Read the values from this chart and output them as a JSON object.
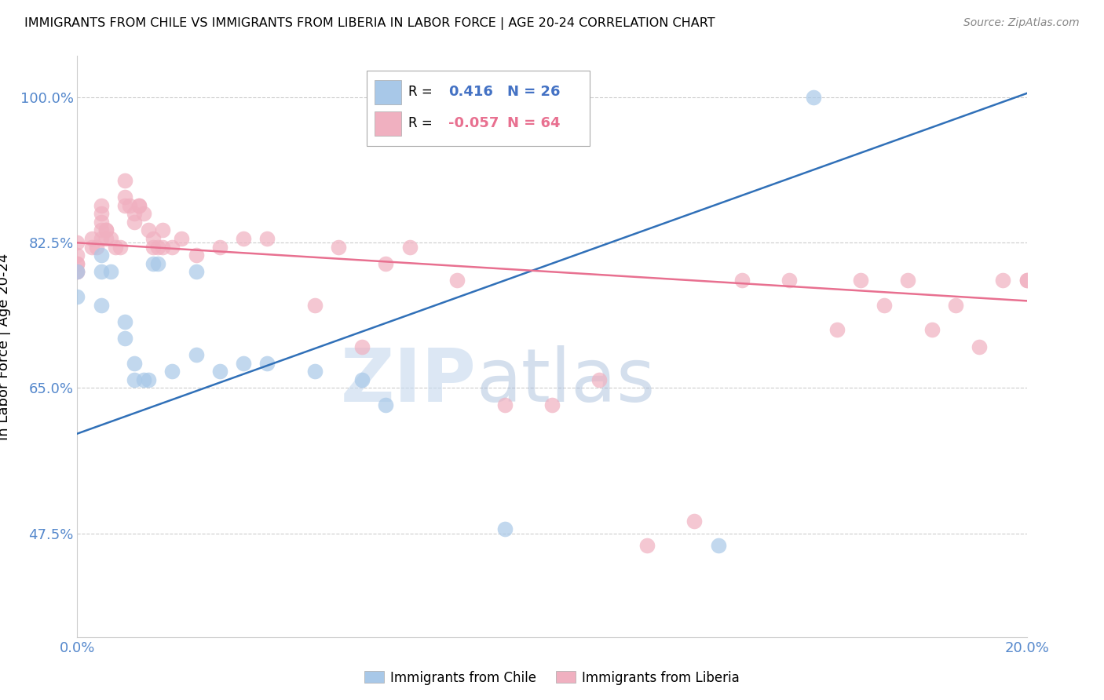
{
  "title": "IMMIGRANTS FROM CHILE VS IMMIGRANTS FROM LIBERIA IN LABOR FORCE | AGE 20-24 CORRELATION CHART",
  "source": "Source: ZipAtlas.com",
  "ylabel": "In Labor Force | Age 20-24",
  "xlim": [
    0.0,
    0.2
  ],
  "ylim": [
    0.35,
    1.05
  ],
  "yticks": [
    0.475,
    0.65,
    0.825,
    1.0
  ],
  "ytick_labels": [
    "47.5%",
    "65.0%",
    "82.5%",
    "100.0%"
  ],
  "xticks": [
    0.0,
    0.05,
    0.1,
    0.15,
    0.2
  ],
  "xtick_labels": [
    "0.0%",
    "",
    "",
    "",
    "20.0%"
  ],
  "chile_R": 0.416,
  "chile_N": 26,
  "liberia_R": -0.057,
  "liberia_N": 64,
  "chile_color": "#a8c8e8",
  "liberia_color": "#f0b0c0",
  "chile_line_color": "#3070b8",
  "liberia_line_color": "#e87090",
  "watermark_zip": "ZIP",
  "watermark_atlas": "atlas",
  "chile_line_x": [
    0.0,
    0.2
  ],
  "chile_line_y": [
    0.595,
    1.005
  ],
  "liberia_line_x": [
    0.0,
    0.2
  ],
  "liberia_line_y": [
    0.825,
    0.755
  ],
  "chile_points_x": [
    0.0,
    0.0,
    0.005,
    0.005,
    0.005,
    0.007,
    0.01,
    0.01,
    0.012,
    0.012,
    0.014,
    0.015,
    0.016,
    0.017,
    0.02,
    0.025,
    0.025,
    0.03,
    0.035,
    0.04,
    0.05,
    0.06,
    0.065,
    0.09,
    0.135,
    0.155
  ],
  "chile_points_y": [
    0.79,
    0.76,
    0.81,
    0.79,
    0.75,
    0.79,
    0.73,
    0.71,
    0.68,
    0.66,
    0.66,
    0.66,
    0.8,
    0.8,
    0.67,
    0.79,
    0.69,
    0.67,
    0.68,
    0.68,
    0.67,
    0.66,
    0.63,
    0.48,
    0.46,
    1.0
  ],
  "liberia_points_x": [
    0.0,
    0.0,
    0.0,
    0.0,
    0.0,
    0.0,
    0.003,
    0.003,
    0.004,
    0.005,
    0.005,
    0.005,
    0.005,
    0.005,
    0.006,
    0.006,
    0.006,
    0.007,
    0.008,
    0.009,
    0.01,
    0.01,
    0.01,
    0.011,
    0.012,
    0.012,
    0.013,
    0.013,
    0.014,
    0.015,
    0.016,
    0.016,
    0.017,
    0.018,
    0.018,
    0.02,
    0.022,
    0.025,
    0.03,
    0.035,
    0.04,
    0.05,
    0.055,
    0.06,
    0.065,
    0.07,
    0.08,
    0.09,
    0.1,
    0.11,
    0.12,
    0.13,
    0.14,
    0.15,
    0.16,
    0.165,
    0.17,
    0.175,
    0.18,
    0.185,
    0.19,
    0.195,
    0.2,
    0.2
  ],
  "liberia_points_y": [
    0.825,
    0.81,
    0.8,
    0.8,
    0.79,
    0.79,
    0.83,
    0.82,
    0.82,
    0.87,
    0.86,
    0.85,
    0.84,
    0.83,
    0.84,
    0.84,
    0.83,
    0.83,
    0.82,
    0.82,
    0.9,
    0.88,
    0.87,
    0.87,
    0.86,
    0.85,
    0.87,
    0.87,
    0.86,
    0.84,
    0.83,
    0.82,
    0.82,
    0.84,
    0.82,
    0.82,
    0.83,
    0.81,
    0.82,
    0.83,
    0.83,
    0.75,
    0.82,
    0.7,
    0.8,
    0.82,
    0.78,
    0.63,
    0.63,
    0.66,
    0.46,
    0.49,
    0.78,
    0.78,
    0.72,
    0.78,
    0.75,
    0.78,
    0.72,
    0.75,
    0.7,
    0.78,
    0.78,
    0.78
  ]
}
